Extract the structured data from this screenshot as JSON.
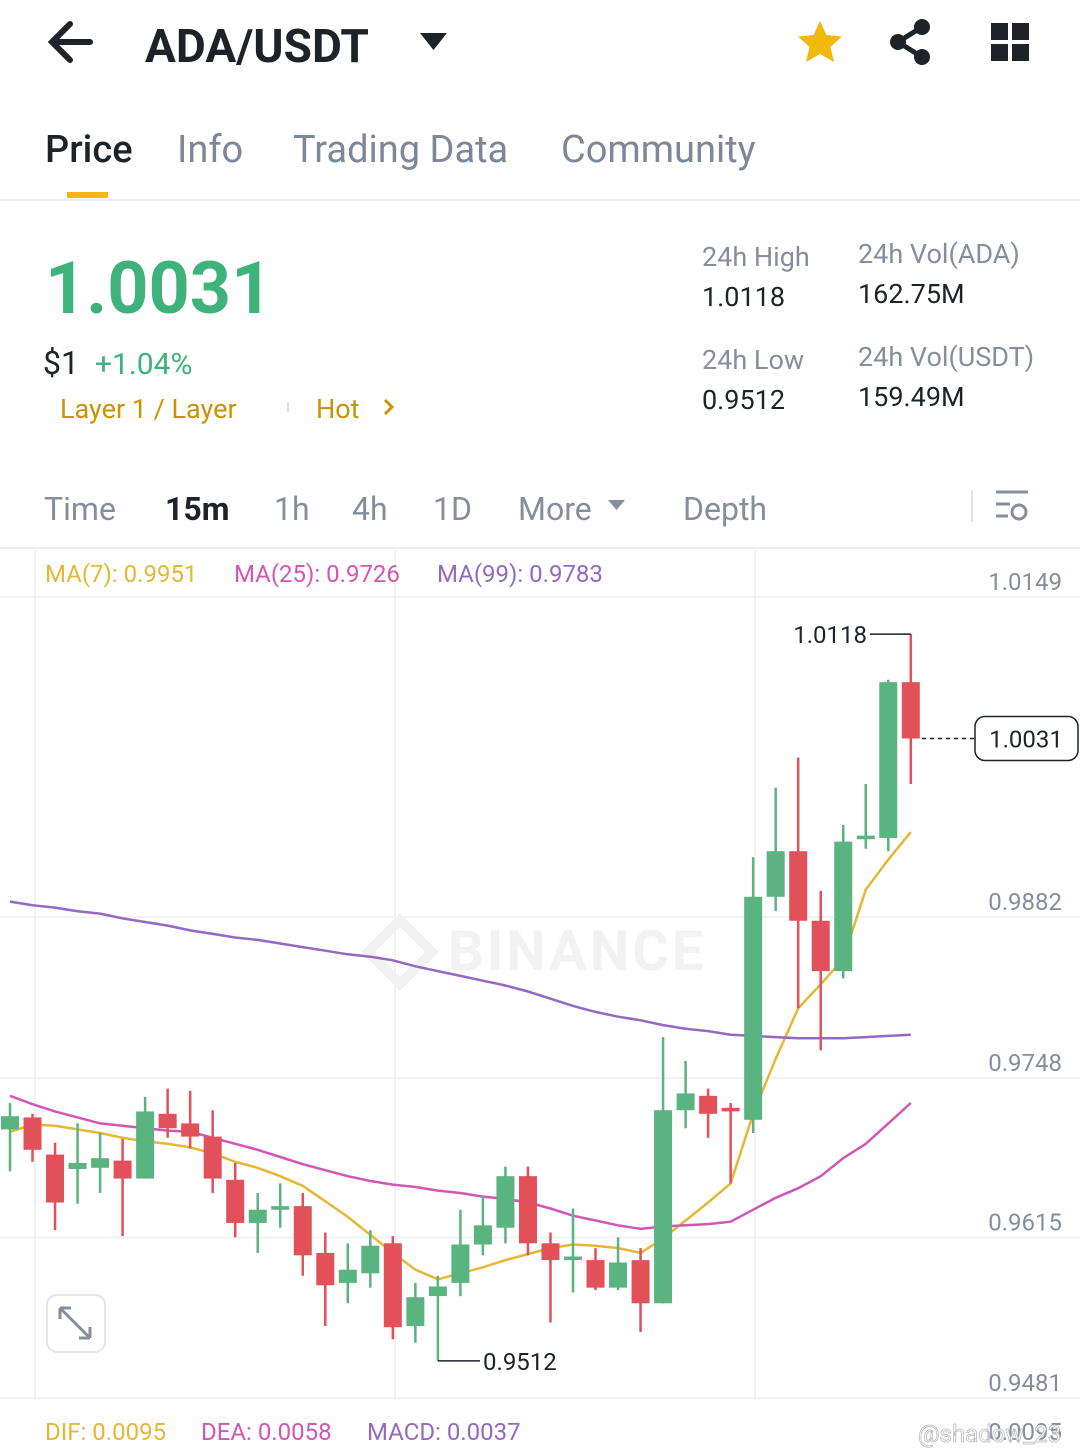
{
  "header": {
    "pair": "ADA/USDT"
  },
  "tabs": [
    "Price",
    "Info",
    "Trading Data",
    "Community"
  ],
  "ticker": {
    "price": "1.0031",
    "usd": "$1",
    "change": "+1.04%",
    "tag": "Layer 1 / Layer",
    "hot": "Hot"
  },
  "stats": [
    {
      "label": "24h High",
      "value": "1.0118"
    },
    {
      "label": "24h Vol(ADA)",
      "value": "162.75M"
    },
    {
      "label": "24h Low",
      "value": "0.9512"
    },
    {
      "label": "24h Vol(USDT)",
      "value": "159.49M"
    }
  ],
  "intervals": [
    "Time",
    "15m",
    "1h",
    "4h",
    "1D",
    "More",
    "Depth"
  ],
  "chart_data": {
    "type": "candlestick",
    "watermark": "BINANCE",
    "ylim": [
      0.9481,
      1.0149
    ],
    "yticks": [
      1.0149,
      0.9882,
      0.9748,
      0.9615,
      0.9481
    ],
    "grid": true,
    "up_color": "#5ab47f",
    "down_color": "#e2505a",
    "open": [
      0.9705,
      0.9715,
      0.9684,
      0.9672,
      0.9673,
      0.9679,
      0.9664,
      0.9718,
      0.971,
      0.9699,
      0.9663,
      0.9627,
      0.9638,
      0.9641,
      0.9602,
      0.9577,
      0.9585,
      0.961,
      0.9541,
      0.9566,
      0.9577,
      0.9609,
      0.9623,
      0.9666,
      0.961,
      0.9596,
      0.9596,
      0.9573,
      0.9596,
      0.956,
      0.9721,
      0.9733,
      0.9723,
      0.9713,
      0.9899,
      0.9937,
      0.9879,
      0.9837,
      0.9947,
      0.9948,
      1.0078
    ],
    "high": [
      0.9727,
      0.9718,
      0.9694,
      0.971,
      0.9702,
      0.9697,
      0.9732,
      0.9739,
      0.9737,
      0.9721,
      0.9677,
      0.9652,
      0.966,
      0.9652,
      0.9619,
      0.961,
      0.9621,
      0.9616,
      0.9577,
      0.9583,
      0.9638,
      0.965,
      0.9674,
      0.9674,
      0.9619,
      0.9639,
      0.9606,
      0.9615,
      0.9606,
      0.9782,
      0.9762,
      0.9739,
      0.9727,
      0.9932,
      0.999,
      1.0015,
      0.9904,
      0.9959,
      0.9993,
      1.008,
      1.0118
    ],
    "low": [
      0.967,
      0.9678,
      0.9621,
      0.9643,
      0.9652,
      0.9616,
      0.9664,
      0.9698,
      0.9689,
      0.9652,
      0.9615,
      0.9602,
      0.9623,
      0.9583,
      0.9541,
      0.956,
      0.9573,
      0.953,
      0.9527,
      0.9512,
      0.9566,
      0.96,
      0.961,
      0.96,
      0.9544,
      0.9569,
      0.9571,
      0.9571,
      0.9536,
      0.956,
      0.9706,
      0.9698,
      0.966,
      0.9702,
      0.9887,
      0.9806,
      0.9771,
      0.9831,
      0.9939,
      0.9937,
      0.9993
    ],
    "close": [
      0.9716,
      0.9688,
      0.9644,
      0.9677,
      0.9681,
      0.9664,
      0.972,
      0.9706,
      0.9699,
      0.9664,
      0.9627,
      0.9638,
      0.9641,
      0.96,
      0.9575,
      0.9588,
      0.9608,
      0.954,
      0.9565,
      0.9574,
      0.9609,
      0.9625,
      0.9666,
      0.961,
      0.9596,
      0.9599,
      0.9573,
      0.9594,
      0.956,
      0.9721,
      0.9735,
      0.9718,
      0.972,
      0.9899,
      0.9937,
      0.9879,
      0.9837,
      0.9945,
      0.995,
      1.0078,
      1.0031
    ],
    "series": [
      {
        "name": "MA(7)",
        "legend": "MA(7): 0.9951",
        "color": "#e6b634",
        "values": [
          0.9703,
          0.9709,
          0.9708,
          0.9705,
          0.9702,
          0.9698,
          0.9695,
          0.9693,
          0.969,
          0.9685,
          0.9678,
          0.9673,
          0.9666,
          0.9658,
          0.9645,
          0.9632,
          0.9617,
          0.9602,
          0.9588,
          0.958,
          0.9585,
          0.959,
          0.9596,
          0.9601,
          0.9606,
          0.9609,
          0.9608,
          0.9606,
          0.9602,
          0.9614,
          0.9629,
          0.9644,
          0.966,
          0.9718,
          0.9764,
          0.9806,
          0.9826,
          0.9847,
          0.9905,
          0.993,
          0.9953
        ]
      },
      {
        "name": "MA(25)",
        "legend": "MA(25): 0.9726",
        "color": "#d256b6",
        "values": [
          0.9733,
          0.9726,
          0.972,
          0.9715,
          0.971,
          0.9708,
          0.9706,
          0.9704,
          0.9703,
          0.9698,
          0.9693,
          0.9688,
          0.9682,
          0.9676,
          0.9671,
          0.9666,
          0.9662,
          0.9659,
          0.9657,
          0.9654,
          0.9652,
          0.9649,
          0.9647,
          0.9644,
          0.9639,
          0.9633,
          0.9629,
          0.9625,
          0.9622,
          0.9624,
          0.9625,
          0.9626,
          0.9628,
          0.9638,
          0.9648,
          0.9656,
          0.9666,
          0.9681,
          0.9693,
          0.971,
          0.9727
        ]
      },
      {
        "name": "MA(99)",
        "legend": "MA(99): 0.9783",
        "color": "#9568c2",
        "values": [
          0.9895,
          0.9892,
          0.989,
          0.9887,
          0.9885,
          0.9881,
          0.9878,
          0.9875,
          0.9871,
          0.9868,
          0.9865,
          0.9863,
          0.986,
          0.9857,
          0.9854,
          0.9851,
          0.9849,
          0.9846,
          0.9841,
          0.9837,
          0.9833,
          0.9829,
          0.9825,
          0.982,
          0.9814,
          0.9808,
          0.9803,
          0.9799,
          0.9796,
          0.9792,
          0.9789,
          0.9787,
          0.9784,
          0.9783,
          0.9782,
          0.9781,
          0.9781,
          0.9781,
          0.9782,
          0.9783,
          0.9784
        ]
      }
    ],
    "high_label": 1.0118,
    "low_label": 0.9512,
    "last_price": 1.0031,
    "macd": {
      "labels": [
        "DIF: 0.0095",
        "DEA: 0.0058",
        "MACD: 0.0037"
      ],
      "axis_label": "0.0095"
    },
    "credit": "@shadow_23"
  }
}
